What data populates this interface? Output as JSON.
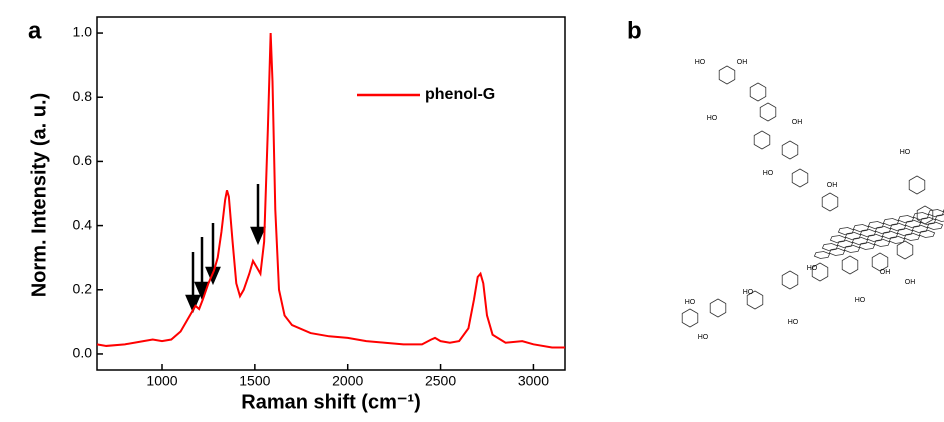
{
  "chart_data": {
    "type": "line",
    "panel_label": "a",
    "ylabel": "Norm. Intensity (a. u.)",
    "xlabel": "Raman shift (cm⁻¹)",
    "x": [
      650,
      700,
      800,
      900,
      950,
      1000,
      1050,
      1100,
      1130,
      1160,
      1180,
      1200,
      1220,
      1250,
      1280,
      1300,
      1320,
      1340,
      1350,
      1360,
      1380,
      1400,
      1420,
      1440,
      1470,
      1490,
      1510,
      1530,
      1550,
      1570,
      1585,
      1595,
      1610,
      1630,
      1660,
      1700,
      1800,
      1900,
      2000,
      2100,
      2200,
      2300,
      2400,
      2450,
      2470,
      2500,
      2550,
      2600,
      2650,
      2680,
      2700,
      2715,
      2730,
      2750,
      2780,
      2850,
      2940,
      3000,
      3100,
      3170
    ],
    "series": [
      {
        "name": "phenol-G",
        "color": "#ff0000",
        "values": [
          0.03,
          0.025,
          0.03,
          0.04,
          0.045,
          0.04,
          0.045,
          0.07,
          0.1,
          0.13,
          0.15,
          0.14,
          0.17,
          0.22,
          0.26,
          0.3,
          0.38,
          0.48,
          0.51,
          0.49,
          0.35,
          0.22,
          0.18,
          0.2,
          0.25,
          0.29,
          0.27,
          0.25,
          0.35,
          0.7,
          1.0,
          0.85,
          0.45,
          0.2,
          0.12,
          0.09,
          0.065,
          0.055,
          0.05,
          0.04,
          0.035,
          0.03,
          0.03,
          0.045,
          0.05,
          0.04,
          0.035,
          0.04,
          0.08,
          0.17,
          0.24,
          0.25,
          0.22,
          0.12,
          0.06,
          0.035,
          0.04,
          0.03,
          0.02,
          0.02
        ]
      }
    ],
    "xlim": [
      650,
      3170
    ],
    "ylim": [
      -0.05,
      1.05
    ],
    "xticks": [
      1000,
      1500,
      2000,
      2500,
      3000
    ],
    "yticks": [
      {
        "value": 0,
        "label": "0.0"
      },
      0.2,
      0.4,
      0.6,
      0.8,
      {
        "value": 1,
        "label": "1.0"
      }
    ],
    "legend": "upper right"
  },
  "diagram": {
    "panel_label": "b",
    "labels": [
      "HO",
      "OH",
      "HO",
      "OH",
      "HO",
      "OH",
      "HO",
      "HO",
      "OH",
      "HO",
      "HO",
      "OH",
      "HO",
      "HO",
      "HO"
    ]
  }
}
